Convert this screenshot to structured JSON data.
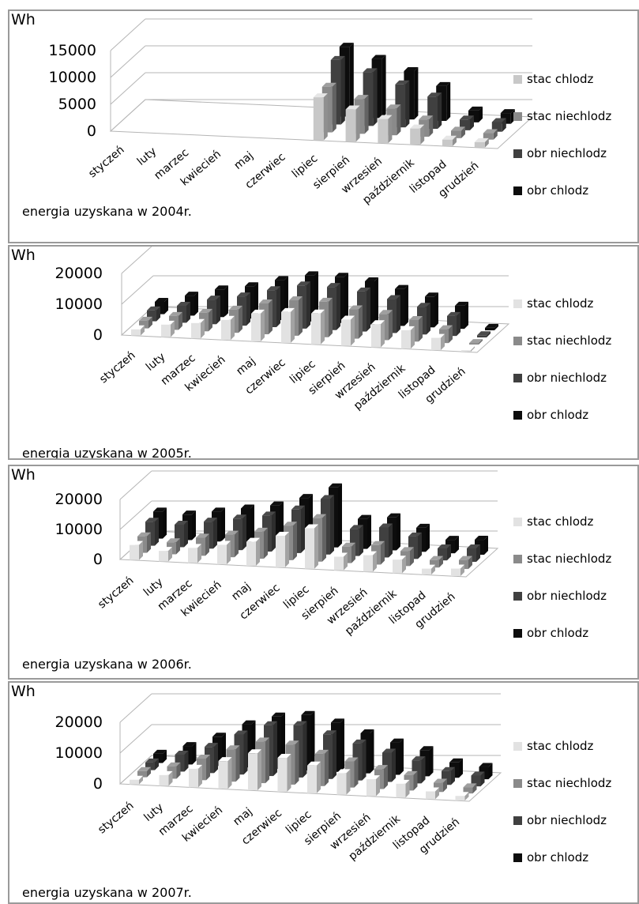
{
  "chart_data": [
    {
      "type": "bar",
      "subtype": "3d-grouped",
      "unit_label": "Wh",
      "caption": "energia uzyskana w 2004r.",
      "categories": [
        "styczeń",
        "luty",
        "marzec",
        "kwiecień",
        "maj",
        "czerwiec",
        "lipiec",
        "sierpień",
        "wrzesień",
        "październik",
        "listopad",
        "grudzień"
      ],
      "yticks": [
        "15000",
        "10000",
        "5000",
        "0"
      ],
      "ylim": [
        0,
        15000
      ],
      "grid": true,
      "legend_position": "right",
      "series": [
        {
          "name": "stac chlodz",
          "color": "#c8c8c8",
          "values": [
            0,
            0,
            0,
            0,
            0,
            0,
            8000,
            6000,
            4500,
            3000,
            1200,
            1000
          ]
        },
        {
          "name": "stac niechlodz",
          "color": "#8a8a8a",
          "values": [
            0,
            0,
            0,
            0,
            0,
            0,
            8500,
            6500,
            5000,
            3200,
            1400,
            1200
          ]
        },
        {
          "name": "obr niechlodz",
          "color": "#404040",
          "values": [
            0,
            0,
            0,
            0,
            0,
            0,
            12000,
            10000,
            8000,
            6000,
            2000,
            1800
          ]
        },
        {
          "name": "obr chlodz",
          "color": "#0d0d0d",
          "values": [
            0,
            0,
            0,
            0,
            0,
            0,
            13000,
            11000,
            9000,
            6500,
            2200,
            2000
          ]
        }
      ]
    },
    {
      "type": "bar",
      "subtype": "3d-grouped",
      "unit_label": "Wh",
      "caption": "energia uzyskana w 2005r.",
      "categories": [
        "styczeń",
        "luty",
        "marzec",
        "kwiecień",
        "maj",
        "czerwiec",
        "lipiec",
        "sierpień",
        "wrzesień",
        "październik",
        "listopad",
        "grudzień"
      ],
      "yticks": [
        "20000",
        "10000",
        "0"
      ],
      "ylim": [
        0,
        20000
      ],
      "grid": true,
      "legend_position": "right",
      "series": [
        {
          "name": "stac chlodz",
          "color": "#e2e2e2",
          "values": [
            2000,
            4000,
            5000,
            6500,
            9000,
            10000,
            10000,
            8500,
            7500,
            6000,
            4000,
            500
          ]
        },
        {
          "name": "stac niechlodz",
          "color": "#8a8a8a",
          "values": [
            2500,
            4500,
            6000,
            7500,
            10000,
            11500,
            11500,
            9500,
            8500,
            7000,
            4500,
            500
          ]
        },
        {
          "name": "obr niechlodz",
          "color": "#404040",
          "values": [
            3500,
            5500,
            8000,
            9500,
            12000,
            14000,
            14000,
            13000,
            11000,
            9000,
            6500,
            700
          ]
        },
        {
          "name": "obr chlodz",
          "color": "#0d0d0d",
          "values": [
            4000,
            6500,
            9000,
            10500,
            13000,
            15000,
            15000,
            14000,
            12000,
            10000,
            7500,
            800
          ]
        }
      ]
    },
    {
      "type": "bar",
      "subtype": "3d-grouped",
      "unit_label": "Wh",
      "caption": "energia uzyskana w 2006r.",
      "categories": [
        "styczeń",
        "luty",
        "marzec",
        "kwiecień",
        "maj",
        "czerwiec",
        "lipiec",
        "sierpień",
        "wrzesień",
        "październik",
        "listopad",
        "grudzień"
      ],
      "yticks": [
        "20000",
        "10000",
        "0"
      ],
      "ylim": [
        0,
        20000
      ],
      "grid": true,
      "legend_position": "right",
      "series": [
        {
          "name": "stac chlodz",
          "color": "#e2e2e2",
          "values": [
            5000,
            3500,
            5000,
            6500,
            8000,
            10500,
            13500,
            4500,
            5500,
            4500,
            2000,
            2500
          ]
        },
        {
          "name": "stac niechlodz",
          "color": "#8a8a8a",
          "values": [
            5500,
            4000,
            6000,
            7500,
            9000,
            11500,
            14500,
            5500,
            6500,
            5000,
            2500,
            3000
          ]
        },
        {
          "name": "obr niechlodz",
          "color": "#404040",
          "values": [
            8000,
            7500,
            9000,
            10500,
            12000,
            14500,
            18500,
            9000,
            10000,
            7500,
            4000,
            4500
          ]
        },
        {
          "name": "obr chlodz",
          "color": "#0d0d0d",
          "values": [
            9000,
            8500,
            10000,
            11500,
            13000,
            16000,
            20000,
            10000,
            11000,
            8000,
            4500,
            5000
          ]
        }
      ]
    },
    {
      "type": "bar",
      "subtype": "3d-grouped",
      "unit_label": "Wh",
      "caption": "energia uzyskana w 2007r.",
      "categories": [
        "styczeń",
        "luty",
        "marzec",
        "kwiecień",
        "maj",
        "czerwiec",
        "lipiec",
        "sierpień",
        "wrzesień",
        "październik",
        "listopad",
        "grudzień"
      ],
      "yticks": [
        "20000",
        "10000",
        "0"
      ],
      "ylim": [
        0,
        20000
      ],
      "grid": true,
      "legend_position": "right",
      "series": [
        {
          "name": "stac chlodz",
          "color": "#e2e2e2",
          "values": [
            1500,
            3500,
            6000,
            9000,
            12000,
            11000,
            9000,
            7000,
            5500,
            4500,
            2500,
            1500
          ]
        },
        {
          "name": "stac niechlodz",
          "color": "#8a8a8a",
          "values": [
            2000,
            4000,
            7000,
            10500,
            13500,
            13000,
            10500,
            8500,
            6500,
            5000,
            3000,
            2000
          ]
        },
        {
          "name": "obr niechlodz",
          "color": "#404040",
          "values": [
            2500,
            5500,
            8500,
            13000,
            16500,
            17000,
            14500,
            12000,
            9500,
            7500,
            4500,
            3500
          ]
        },
        {
          "name": "obr chlodz",
          "color": "#0d0d0d",
          "values": [
            3000,
            6000,
            9500,
            14000,
            17000,
            18000,
            16000,
            13000,
            10500,
            8500,
            5000,
            4000
          ]
        }
      ]
    }
  ]
}
